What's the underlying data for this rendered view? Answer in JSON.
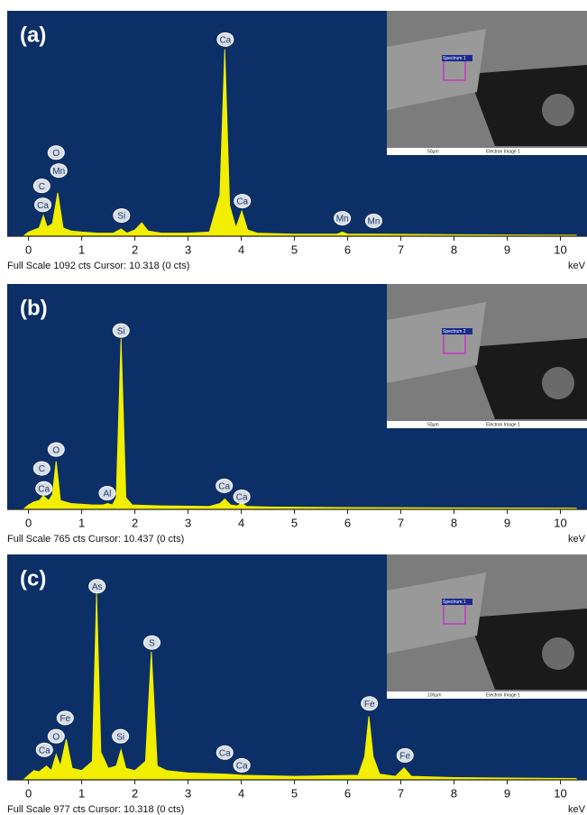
{
  "chart_data": [
    {
      "type": "area",
      "label": "(a)",
      "footer": "Full Scale 1092 cts Cursor: 10.318  (0 cts)",
      "x_unit": "keV",
      "color": "#f2ee00",
      "x": [
        -0.1,
        0,
        0.1,
        0.2,
        0.28,
        0.35,
        0.45,
        0.55,
        0.65,
        0.8,
        1.0,
        1.3,
        1.6,
        1.74,
        1.85,
        2.0,
        2.13,
        2.25,
        2.5,
        3.0,
        3.4,
        3.6,
        3.69,
        3.78,
        3.9,
        4.01,
        4.12,
        4.3,
        5.0,
        5.8,
        5.9,
        6.0,
        6.5,
        7.5,
        9,
        10.3
      ],
      "values": [
        0,
        20,
        30,
        40,
        100,
        45,
        60,
        210,
        40,
        25,
        20,
        15,
        15,
        35,
        15,
        30,
        65,
        25,
        15,
        15,
        20,
        200,
        905,
        150,
        40,
        122,
        30,
        15,
        10,
        10,
        20,
        10,
        10,
        8,
        6,
        5
      ],
      "xlim": [
        -0.4,
        10.5
      ],
      "ylim": [
        0,
        1092
      ],
      "xticks": [
        0,
        1,
        2,
        3,
        4,
        5,
        6,
        7,
        8,
        9,
        10
      ],
      "annotations": [
        {
          "text": "C",
          "x": 0.25,
          "y": 244
        },
        {
          "text": "Ca",
          "x": 0.27,
          "y": 152
        },
        {
          "text": "O",
          "x": 0.52,
          "y": 405
        },
        {
          "text": "Mn",
          "x": 0.57,
          "y": 318
        },
        {
          "text": "Si",
          "x": 1.75,
          "y": 100
        },
        {
          "text": "Ca",
          "x": 3.7,
          "y": 953
        },
        {
          "text": "Ca",
          "x": 4.02,
          "y": 170
        },
        {
          "text": "Mn",
          "x": 5.9,
          "y": 87
        },
        {
          "text": "Mn",
          "x": 6.49,
          "y": 74
        }
      ],
      "inset": {
        "spectrum": "Spectrum 1",
        "scale": "50µm",
        "image": "Electron Image 1"
      }
    },
    {
      "type": "area",
      "label": "(b)",
      "footer": "Full Scale 765 cts Cursor: 10.437  (0 cts)",
      "x_unit": "keV",
      "color": "#f2ee00",
      "x": [
        -0.1,
        0,
        0.1,
        0.2,
        0.28,
        0.38,
        0.45,
        0.52,
        0.6,
        0.8,
        1.2,
        1.4,
        1.49,
        1.58,
        1.65,
        1.74,
        1.83,
        1.95,
        2.5,
        3.4,
        3.6,
        3.69,
        3.8,
        3.92,
        4.01,
        4.1,
        4.5,
        6,
        8,
        10.3
      ],
      "values": [
        0,
        15,
        25,
        30,
        46,
        30,
        50,
        163,
        30,
        20,
        15,
        15,
        20,
        15,
        40,
        580,
        40,
        15,
        12,
        10,
        20,
        35,
        15,
        12,
        20,
        10,
        8,
        6,
        5,
        4
      ],
      "xlim": [
        -0.4,
        10.5
      ],
      "ylim": [
        0,
        765
      ],
      "xticks": [
        0,
        1,
        2,
        3,
        4,
        5,
        6,
        7,
        8,
        9,
        10
      ],
      "annotations": [
        {
          "text": "O",
          "x": 0.52,
          "y": 203
        },
        {
          "text": "C",
          "x": 0.25,
          "y": 139
        },
        {
          "text": "Ca",
          "x": 0.29,
          "y": 71
        },
        {
          "text": "Al",
          "x": 1.48,
          "y": 55
        },
        {
          "text": "Si",
          "x": 1.74,
          "y": 607
        },
        {
          "text": "Ca",
          "x": 3.68,
          "y": 80
        },
        {
          "text": "Ca",
          "x": 4.01,
          "y": 43
        }
      ],
      "inset": {
        "spectrum": "Spectrum 2",
        "scale": "50µm",
        "image": "Electron Image 1"
      }
    },
    {
      "type": "area",
      "label": "(c)",
      "footer": "Full Scale 977 cts Cursor: 10.318  (0 cts)",
      "x_unit": "keV",
      "color": "#f2ee00",
      "x": [
        -0.1,
        0,
        0.1,
        0.2,
        0.34,
        0.43,
        0.52,
        0.6,
        0.71,
        0.82,
        1.0,
        1.2,
        1.28,
        1.36,
        1.5,
        1.65,
        1.74,
        1.83,
        2.0,
        2.2,
        2.31,
        2.42,
        2.6,
        3.0,
        3.69,
        4.01,
        5.0,
        6.2,
        6.32,
        6.4,
        6.48,
        6.6,
        6.9,
        7.06,
        7.2,
        8,
        9,
        10.3
      ],
      "values": [
        0,
        20,
        40,
        35,
        60,
        40,
        110,
        60,
        176,
        50,
        40,
        80,
        807,
        120,
        50,
        60,
        130,
        50,
        40,
        80,
        555,
        60,
        40,
        30,
        25,
        20,
        15,
        20,
        100,
        276,
        100,
        25,
        15,
        52,
        15,
        10,
        8,
        6
      ],
      "xlim": [
        -0.4,
        10.5
      ],
      "ylim": [
        0,
        977
      ],
      "xticks": [
        0,
        1,
        2,
        3,
        4,
        5,
        6,
        7,
        8,
        9,
        10
      ],
      "annotations": [
        {
          "text": "Fe",
          "x": 0.69,
          "y": 268
        },
        {
          "text": "O",
          "x": 0.52,
          "y": 189
        },
        {
          "text": "Ca",
          "x": 0.3,
          "y": 130
        },
        {
          "text": "As",
          "x": 1.29,
          "y": 839
        },
        {
          "text": "Si",
          "x": 1.73,
          "y": 189
        },
        {
          "text": "S",
          "x": 2.32,
          "y": 595
        },
        {
          "text": "Ca",
          "x": 3.69,
          "y": 118
        },
        {
          "text": "Ca",
          "x": 4.01,
          "y": 63
        },
        {
          "text": "Fe",
          "x": 6.41,
          "y": 331
        },
        {
          "text": "Fe",
          "x": 7.08,
          "y": 106
        }
      ],
      "inset": {
        "spectrum": "Spectrum 1",
        "scale": "100µm",
        "image": "Electron Image 1"
      }
    }
  ]
}
